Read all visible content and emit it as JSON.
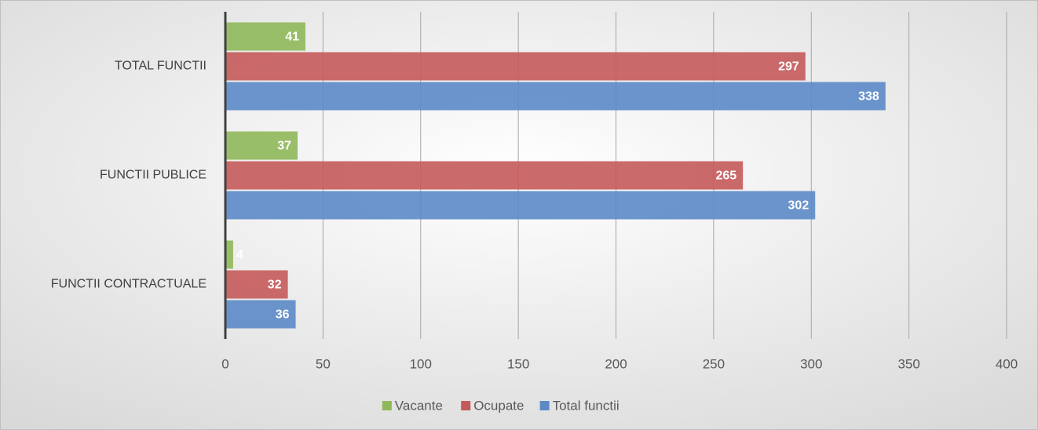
{
  "chart_data": {
    "type": "hbar",
    "categories": [
      "TOTAL FUNCTII",
      "FUNCTII PUBLICE",
      "FUNCTII CONTRACTUALE"
    ],
    "series": [
      {
        "name": "Vacante",
        "color": "#8fb85a",
        "values": [
          41,
          37,
          4
        ]
      },
      {
        "name": "Ocupate",
        "color": "#c55a5a",
        "values": [
          297,
          265,
          32
        ]
      },
      {
        "name": "Total functii",
        "color": "#5b8ac6",
        "values": [
          338,
          302,
          36
        ]
      }
    ],
    "xlim": [
      0,
      400
    ],
    "xticks": [
      0,
      50,
      100,
      150,
      200,
      250,
      300,
      350,
      400
    ],
    "grid": true,
    "legend": "bottom"
  }
}
